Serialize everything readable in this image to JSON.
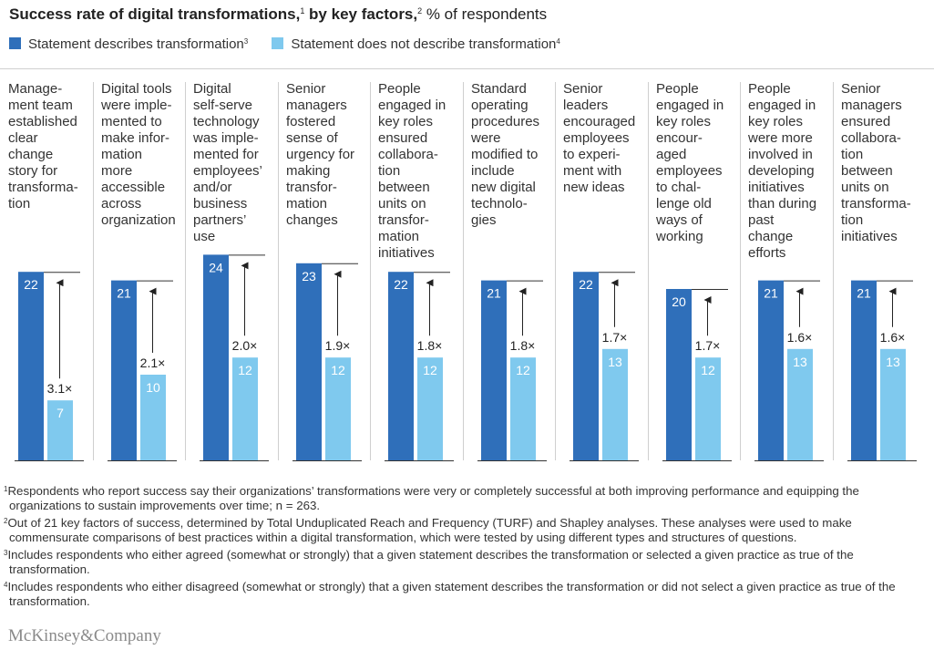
{
  "title": {
    "main": "Success rate of digital transformations,",
    "sup1": "1",
    "middle": " by key factors,",
    "sup2": "2",
    "unit": " % of respondents"
  },
  "legend": [
    {
      "label": "Statement describes transformation",
      "sup": "3",
      "color": "#2f6fba"
    },
    {
      "label": "Statement does not describe transformation",
      "sup": "4",
      "color": "#7fc9ee"
    }
  ],
  "chart_data": {
    "type": "bar",
    "categories": [
      "Manage-\nment team\nestablished\nclear\nchange\nstory for\ntransforma-\ntion",
      "Digital tools\nwere imple-\nmented to\nmake infor-\nmation\nmore\naccessible\nacross\norganization",
      "Digital\nself-serve\ntechnology\nwas imple-\nmented for\nemployees’\nand/or\nbusiness\npartners’\nuse",
      "Senior\nmanagers\nfostered\nsense of\nurgency for\nmaking\ntransfor-\nmation\nchanges",
      "People\nengaged in\nkey roles\nensured\ncollabora-\ntion\nbetween\nunits on\ntransfor-\nmation\ninitiatives",
      "Standard\noperating\nprocedures\nwere\nmodified to\ninclude\nnew digital\ntechnolo-\ngies",
      "Senior\nleaders\nencouraged\nemployees\nto experi-\nment with\nnew ideas",
      "People\nengaged in\nkey roles\nencour-\naged\nemployees\nto chal-\nlenge old\nways of\nworking",
      "People\nengaged in\nkey roles\nwere more\ninvolved in\ndeveloping\ninitiatives\nthan during\npast\nchange\nefforts",
      "Senior\nmanagers\nensured\ncollabora-\ntion\nbetween\nunits on\ntransforma-\ntion\ninitiatives"
    ],
    "series": [
      {
        "name": "Statement describes transformation",
        "values": [
          22,
          21,
          24,
          23,
          22,
          21,
          22,
          20,
          21,
          21
        ]
      },
      {
        "name": "Statement does not describe transformation",
        "values": [
          7,
          10,
          12,
          12,
          12,
          12,
          13,
          12,
          13,
          13
        ]
      }
    ],
    "multipliers": [
      "3.1×",
      "2.1×",
      "2.0×",
      "1.9×",
      "1.8×",
      "1.8×",
      "1.7×",
      "1.7×",
      "1.6×",
      "1.6×"
    ],
    "ylim": [
      0,
      24
    ],
    "grid": false
  },
  "footnotes": [
    {
      "sup": "1",
      "text": "Respondents who report success say their organizations’ transformations were very or completely successful at both improving performance and equipping the organizations to sustain improvements over time; n = 263."
    },
    {
      "sup": "2",
      "text": "Out of 21 key factors of success, determined by Total Unduplicated Reach and Frequency (TURF) and Shapley analyses. These analyses were used to make commensurate comparisons of best practices within a digital transformation, which were tested by using different types and structures of questions."
    },
    {
      "sup": "3",
      "text": "Includes respondents who either agreed (somewhat or strongly) that a given statement describes the transformation or selected a given practice as true of the transformation."
    },
    {
      "sup": "4",
      "text": "Includes respondents who either disagreed (somewhat or strongly) that a given statement describes the transformation or did not select a given practice as true of the transformation."
    }
  ],
  "brand": "McKinsey&Company"
}
